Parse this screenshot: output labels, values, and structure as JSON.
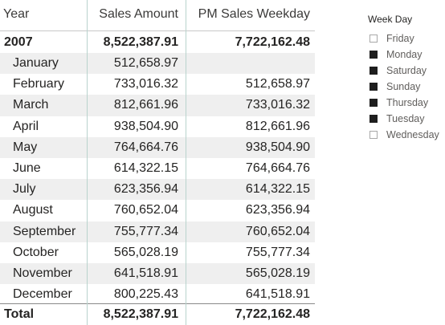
{
  "matrix": {
    "headers": {
      "year": "Year",
      "sales": "Sales Amount",
      "pm": "PM Sales Weekday"
    },
    "year_row": {
      "label": "2007",
      "sales": "8,522,387.91",
      "pm": "7,722,162.48"
    },
    "months": [
      {
        "label": "January",
        "sales": "512,658.97",
        "pm": ""
      },
      {
        "label": "February",
        "sales": "733,016.32",
        "pm": "512,658.97"
      },
      {
        "label": "March",
        "sales": "812,661.96",
        "pm": "733,016.32"
      },
      {
        "label": "April",
        "sales": "938,504.90",
        "pm": "812,661.96"
      },
      {
        "label": "May",
        "sales": "764,664.76",
        "pm": "938,504.90"
      },
      {
        "label": "June",
        "sales": "614,322.15",
        "pm": "764,664.76"
      },
      {
        "label": "July",
        "sales": "623,356.94",
        "pm": "614,322.15"
      },
      {
        "label": "August",
        "sales": "760,652.04",
        "pm": "623,356.94"
      },
      {
        "label": "September",
        "sales": "755,777.34",
        "pm": "760,652.04"
      },
      {
        "label": "October",
        "sales": "565,028.19",
        "pm": "755,777.34"
      },
      {
        "label": "November",
        "sales": "641,518.91",
        "pm": "565,028.19"
      },
      {
        "label": "December",
        "sales": "800,225.43",
        "pm": "641,518.91"
      }
    ],
    "total_row": {
      "label": "Total",
      "sales": "8,522,387.91",
      "pm": "7,722,162.48"
    }
  },
  "slicer": {
    "title": "Week Day",
    "options": [
      {
        "label": "Friday",
        "checked": false
      },
      {
        "label": "Monday",
        "checked": true
      },
      {
        "label": "Saturday",
        "checked": true
      },
      {
        "label": "Sunday",
        "checked": true
      },
      {
        "label": "Thursday",
        "checked": true
      },
      {
        "label": "Tuesday",
        "checked": true
      },
      {
        "label": "Wednesday",
        "checked": false
      }
    ]
  },
  "colors": {
    "row_shade": "#efefef",
    "checked": "#1e1e1e",
    "unchecked_border": "#a8a8a8"
  }
}
